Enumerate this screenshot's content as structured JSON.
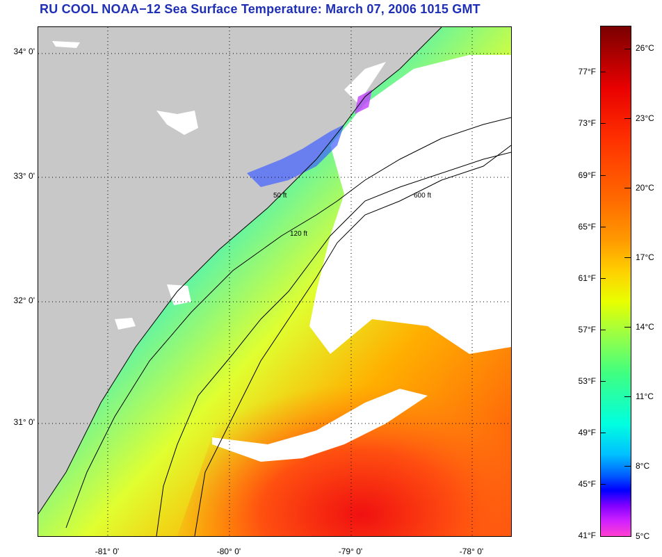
{
  "title": "RU COOL  NOAA−12  Sea Surface Temperature:  March 07, 2006 1015 GMT",
  "map": {
    "latitude_labels": [
      {
        "text": "34° 0'",
        "lat": 34.0
      },
      {
        "text": "33° 0'",
        "lat": 33.0
      },
      {
        "text": "32° 0'",
        "lat": 32.0
      },
      {
        "text": "31° 0'",
        "lat": 31.0
      }
    ],
    "longitude_labels": [
      {
        "text": "-81° 0'",
        "lon": -81.0
      },
      {
        "text": "-80° 0'",
        "lon": -80.0
      },
      {
        "text": "-79° 0'",
        "lon": -79.0
      },
      {
        "text": "-78° 0'",
        "lon": -78.0
      }
    ],
    "lon_range": [
      -81.57,
      -77.67
    ],
    "lat_range": [
      30.09,
      34.21
    ],
    "contour_labels": [
      "50 ft",
      "120 ft",
      "600 ft"
    ],
    "colors": {
      "land": "#c8c8c8",
      "cloud": "#ffffff"
    }
  },
  "colorbar": {
    "fahrenheit": [
      "77°F",
      "73°F",
      "69°F",
      "65°F",
      "61°F",
      "57°F",
      "53°F",
      "49°F",
      "45°F",
      "41°F"
    ],
    "celsius": [
      "26°C",
      "23°C",
      "20°C",
      "17°C",
      "14°C",
      "11°C",
      "8°C",
      "5°C"
    ],
    "range_f": [
      41,
      81
    ]
  }
}
